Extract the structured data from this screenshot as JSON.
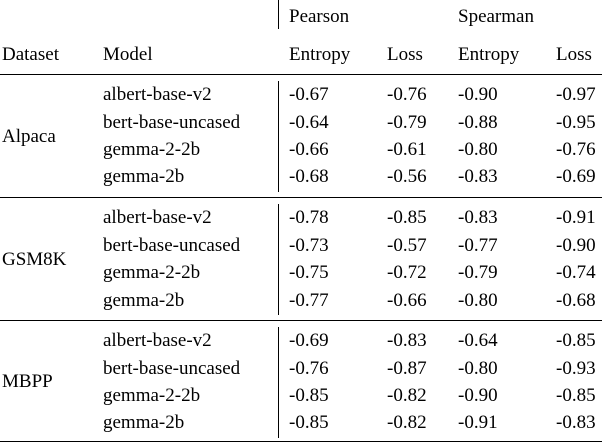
{
  "header": {
    "group_pearson": "Pearson",
    "group_spearman": "Spearman",
    "col_dataset": "Dataset",
    "col_model": "Model",
    "sub_entropy_1": "Entropy",
    "sub_loss_1": "Loss",
    "sub_entropy_2": "Entropy",
    "sub_loss_2": "Loss"
  },
  "groups": [
    {
      "dataset": "Alpaca",
      "rows": [
        {
          "model": "albert-base-v2",
          "p_entropy": "-0.67",
          "p_loss": "-0.76",
          "s_entropy": "-0.90",
          "s_loss": "-0.97"
        },
        {
          "model": "bert-base-uncased",
          "p_entropy": "-0.64",
          "p_loss": "-0.79",
          "s_entropy": "-0.88",
          "s_loss": "-0.95"
        },
        {
          "model": "gemma-2-2b",
          "p_entropy": "-0.66",
          "p_loss": "-0.61",
          "s_entropy": "-0.80",
          "s_loss": "-0.76"
        },
        {
          "model": "gemma-2b",
          "p_entropy": "-0.68",
          "p_loss": "-0.56",
          "s_entropy": "-0.83",
          "s_loss": "-0.69"
        }
      ]
    },
    {
      "dataset": "GSM8K",
      "rows": [
        {
          "model": "albert-base-v2",
          "p_entropy": "-0.78",
          "p_loss": "-0.85",
          "s_entropy": "-0.83",
          "s_loss": "-0.91"
        },
        {
          "model": "bert-base-uncased",
          "p_entropy": "-0.73",
          "p_loss": "-0.57",
          "s_entropy": "-0.77",
          "s_loss": "-0.90"
        },
        {
          "model": "gemma-2-2b",
          "p_entropy": "-0.75",
          "p_loss": "-0.72",
          "s_entropy": "-0.79",
          "s_loss": "-0.74"
        },
        {
          "model": "gemma-2b",
          "p_entropy": "-0.77",
          "p_loss": "-0.66",
          "s_entropy": "-0.80",
          "s_loss": "-0.68"
        }
      ]
    },
    {
      "dataset": "MBPP",
      "rows": [
        {
          "model": "albert-base-v2",
          "p_entropy": "-0.69",
          "p_loss": "-0.83",
          "s_entropy": "-0.64",
          "s_loss": "-0.85"
        },
        {
          "model": "bert-base-uncased",
          "p_entropy": "-0.76",
          "p_loss": "-0.87",
          "s_entropy": "-0.80",
          "s_loss": "-0.93"
        },
        {
          "model": "gemma-2-2b",
          "p_entropy": "-0.85",
          "p_loss": "-0.82",
          "s_entropy": "-0.90",
          "s_loss": "-0.85"
        },
        {
          "model": "gemma-2b",
          "p_entropy": "-0.85",
          "p_loss": "-0.82",
          "s_entropy": "-0.91",
          "s_loss": "-0.83"
        }
      ]
    }
  ]
}
